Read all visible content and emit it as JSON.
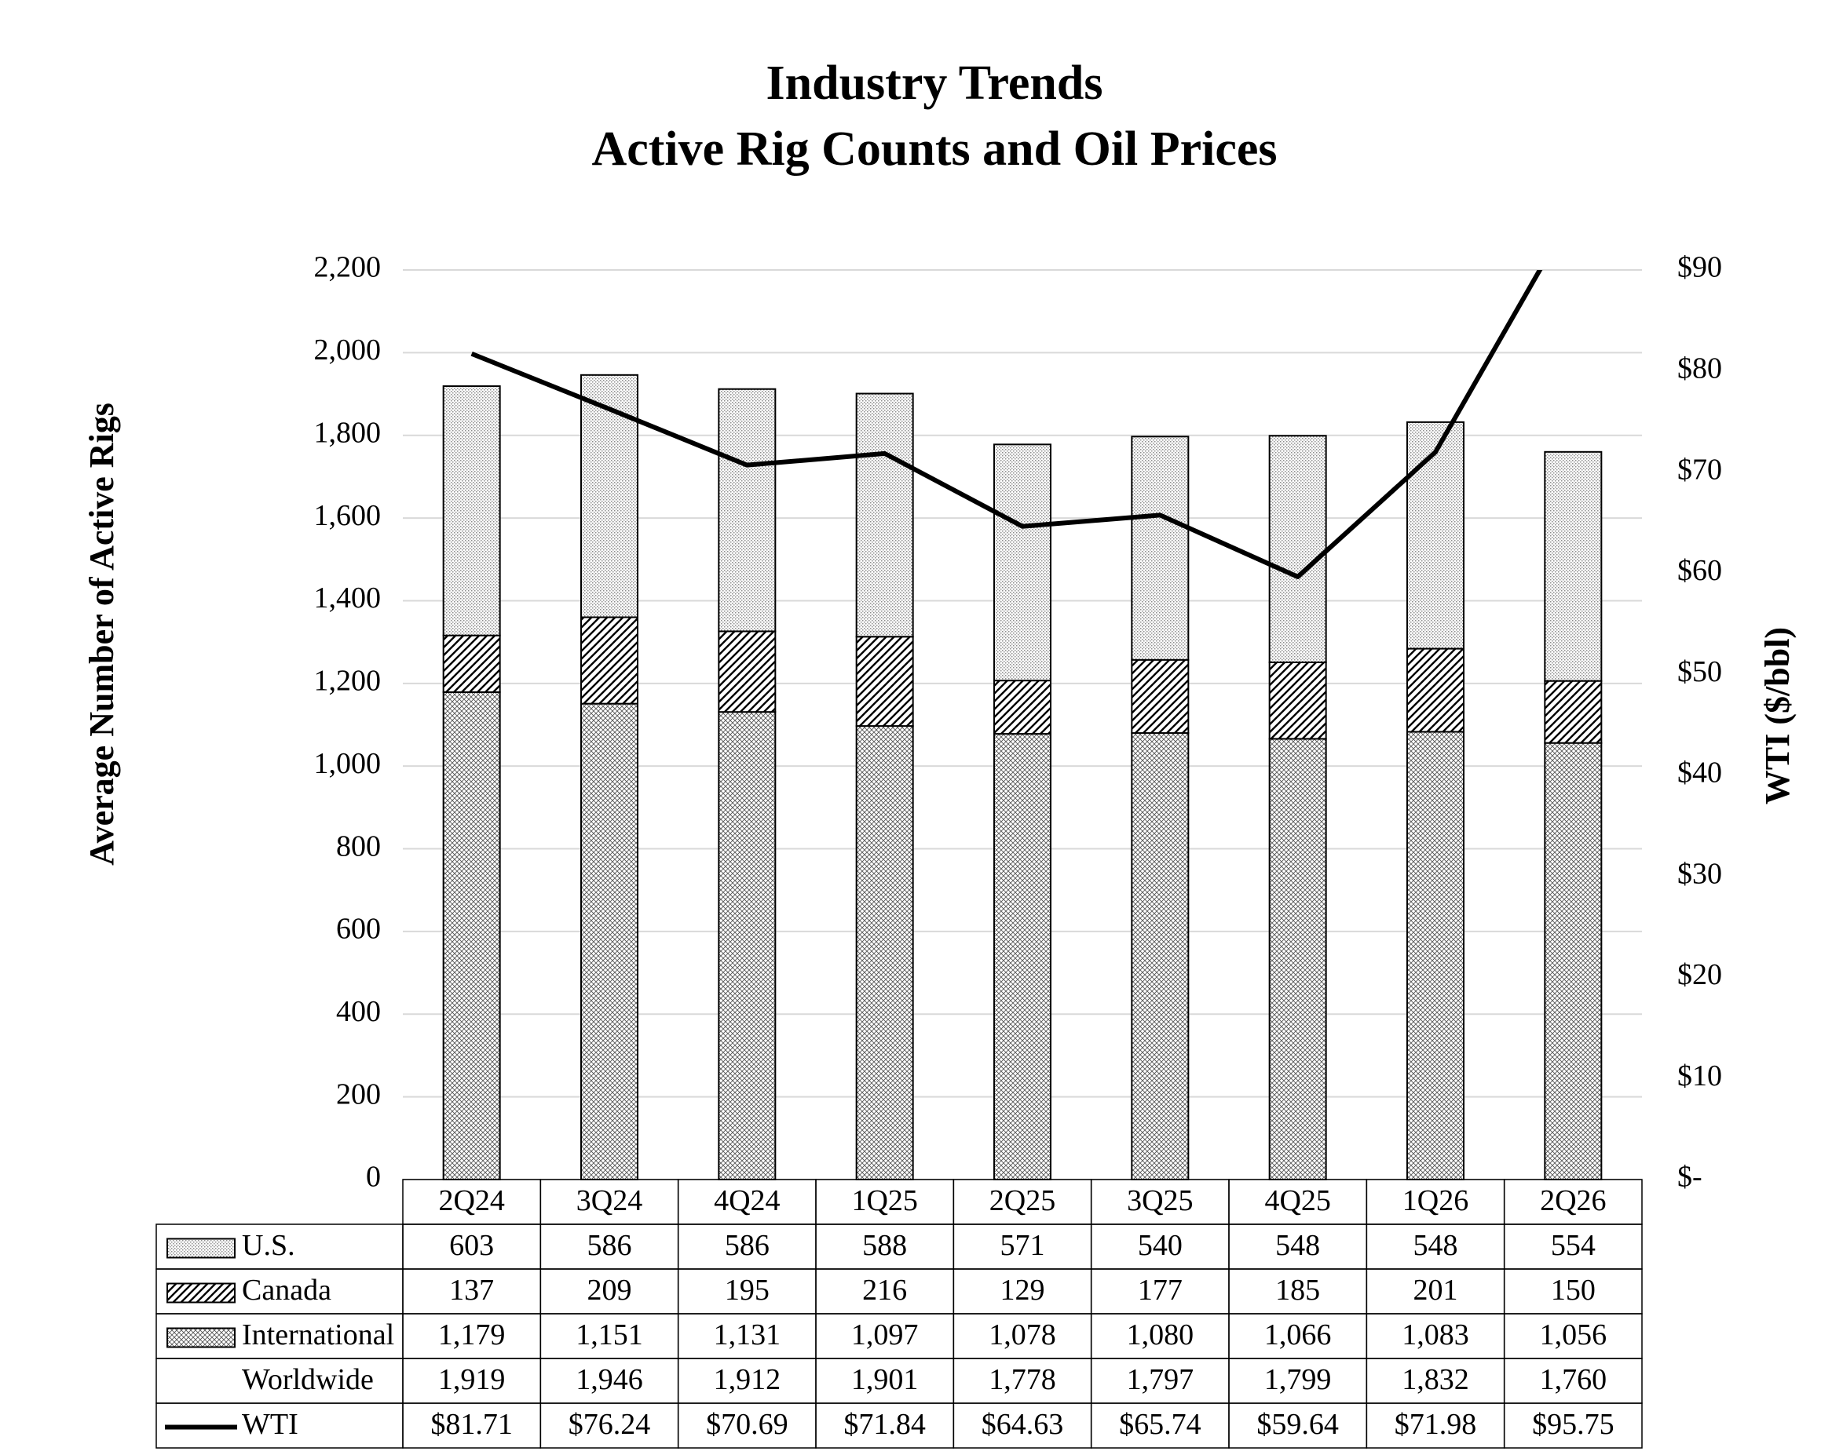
{
  "chart_data": {
    "type": "bar",
    "stacked": true,
    "title": [
      "Industry Trends",
      "Active Rig Counts and Oil Prices"
    ],
    "ylabel": "Average Number of Active Rigs",
    "y2label": "WTI ($/bbl)",
    "categories": [
      "2Q24",
      "3Q24",
      "4Q24",
      "1Q25",
      "2Q25",
      "3Q25",
      "4Q25",
      "1Q26",
      "2Q26"
    ],
    "series": [
      {
        "name": "U.S.",
        "color": "#8c8c8c",
        "pattern": "dots",
        "values": [
          603,
          586,
          586,
          588,
          571,
          540,
          548,
          548,
          554
        ],
        "value_labels": [
          "603",
          "586",
          "586",
          "588",
          "571",
          "540",
          "548",
          "548",
          "554"
        ]
      },
      {
        "name": "Canada",
        "color": "#000000",
        "pattern": "hatch",
        "values": [
          137,
          209,
          195,
          216,
          129,
          177,
          185,
          201,
          150
        ],
        "value_labels": [
          "137",
          "209",
          "195",
          "216",
          "129",
          "177",
          "185",
          "201",
          "150"
        ]
      },
      {
        "name": "International",
        "color": "#555555",
        "pattern": "crosshatch",
        "values": [
          1179,
          1151,
          1131,
          1097,
          1078,
          1080,
          1066,
          1083,
          1056
        ],
        "value_labels": [
          "1,179",
          "1,151",
          "1,131",
          "1,097",
          "1,078",
          "1,080",
          "1,066",
          "1,083",
          "1,056"
        ]
      },
      {
        "name": "WTI",
        "type": "line",
        "axis": "y2",
        "color": "#000000",
        "values": [
          81.71,
          76.24,
          70.69,
          71.84,
          64.63,
          65.74,
          59.64,
          71.98,
          95.75
        ],
        "value_labels": [
          "$81.71",
          "$76.24",
          "$70.69",
          "$71.84",
          "$64.63",
          "$65.74",
          "$59.64",
          "$71.98",
          "$95.75"
        ]
      }
    ],
    "totals": {
      "name": "Worldwide",
      "values": [
        1919,
        1946,
        1912,
        1901,
        1778,
        1797,
        1799,
        1832,
        1760
      ],
      "value_labels": [
        "1,919",
        "1,946",
        "1,912",
        "1,901",
        "1,778",
        "1,797",
        "1,799",
        "1,832",
        "1,760"
      ]
    },
    "ylim": [
      0,
      2200
    ],
    "yticks": [
      0,
      200,
      400,
      600,
      800,
      {
        "value": 1000,
        "label": "1,000"
      },
      {
        "value": 1200,
        "label": "1,200"
      },
      {
        "value": 1400,
        "label": "1,400"
      },
      {
        "value": 1600,
        "label": "1,600"
      },
      {
        "value": 1800,
        "label": "1,800"
      },
      {
        "value": 2000,
        "label": "2,000"
      },
      {
        "value": 2200,
        "label": "2,200"
      }
    ],
    "y2lim": [
      0,
      90
    ],
    "y2ticks": [
      {
        "value": 0,
        "label": "$-"
      },
      {
        "value": 10,
        "label": "$10"
      },
      {
        "value": 20,
        "label": "$20"
      },
      {
        "value": 30,
        "label": "$30"
      },
      {
        "value": 40,
        "label": "$40"
      },
      {
        "value": 50,
        "label": "$50"
      },
      {
        "value": 60,
        "label": "$60"
      },
      {
        "value": 70,
        "label": "$70"
      },
      {
        "value": 80,
        "label": "$80"
      },
      {
        "value": 90,
        "label": "$90"
      }
    ],
    "grid": true,
    "data_table": true
  }
}
